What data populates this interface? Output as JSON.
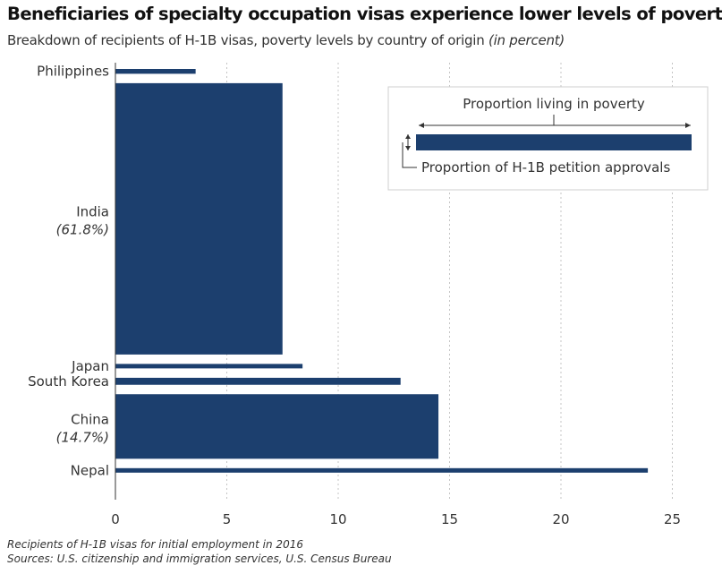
{
  "title": "Beneficiaries of specialty occupation visas experience lower levels of poverty",
  "subtitle": "Breakdown of recipients of H-1B visas, poverty levels by country of origin",
  "subtitle_note": "(in percent)",
  "legend": {
    "width_label": "Proportion living in poverty",
    "height_label": "Proportion of H-1B petition approvals"
  },
  "footer": {
    "line1": "Recipients of H-1B visas for initial employment in 2016",
    "line2": "Sources: U.S. citizenship and immigration services, U.S. Census Bureau"
  },
  "colors": {
    "bar": "#1c3f6e",
    "grid": "#c4c4c4"
  },
  "chart_data": {
    "type": "bar",
    "orientation": "horizontal-variable-width",
    "categories": [
      "Philippines",
      "India",
      "Japan",
      "South Korea",
      "China",
      "Nepal"
    ],
    "category_notes": [
      "",
      "(61.8%)",
      "",
      "",
      "(14.7%)",
      ""
    ],
    "values": [
      3.6,
      7.5,
      8.4,
      12.8,
      14.5,
      23.9
    ],
    "approval_share": [
      1.1,
      61.8,
      0.8,
      1.6,
      14.7,
      0.6
    ],
    "xlim": [
      0,
      26
    ],
    "xticks": [
      0,
      5,
      10,
      15,
      20,
      25
    ],
    "grid": true,
    "legend_position": "top-right"
  }
}
